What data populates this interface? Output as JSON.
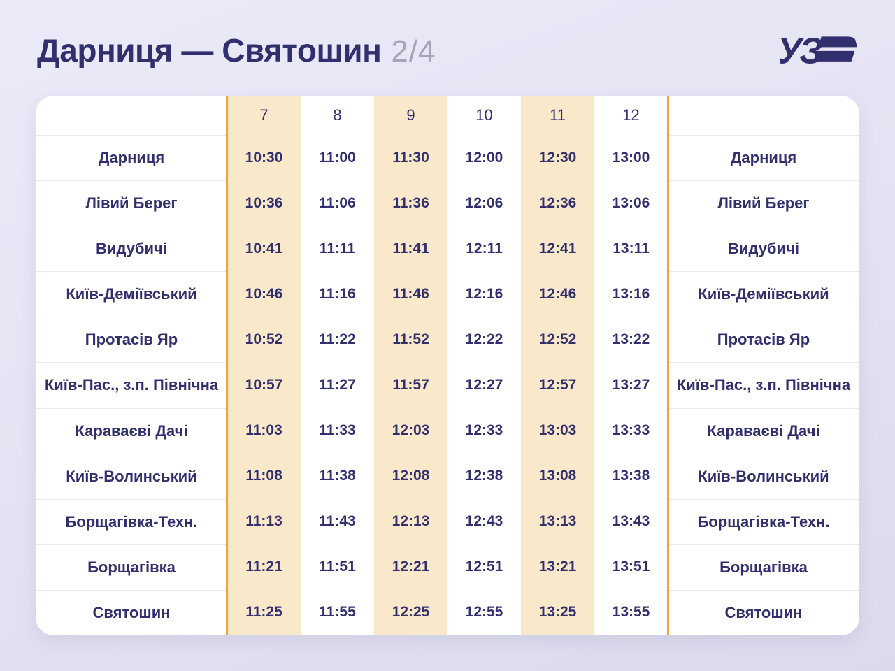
{
  "header": {
    "title": "Дарниця — Святошин",
    "page_indicator": "2/4",
    "logo_text": "УЗ"
  },
  "chart_data": {
    "type": "table",
    "title": "Дарниця — Святошин",
    "page": "2/4",
    "train_numbers": [
      "7",
      "8",
      "9",
      "10",
      "11",
      "12"
    ],
    "highlighted_train_numbers": [
      "7",
      "9",
      "11"
    ],
    "station_column_repeated_right": true,
    "rows": [
      {
        "station": "Дарниця",
        "times": [
          "10:30",
          "11:00",
          "11:30",
          "12:00",
          "12:30",
          "13:00"
        ]
      },
      {
        "station": "Лівий Берег",
        "times": [
          "10:36",
          "11:06",
          "11:36",
          "12:06",
          "12:36",
          "13:06"
        ]
      },
      {
        "station": "Видубичі",
        "times": [
          "10:41",
          "11:11",
          "11:41",
          "12:11",
          "12:41",
          "13:11"
        ]
      },
      {
        "station": "Київ-Деміївський",
        "times": [
          "10:46",
          "11:16",
          "11:46",
          "12:16",
          "12:46",
          "13:16"
        ]
      },
      {
        "station": "Протасів Яр",
        "times": [
          "10:52",
          "11:22",
          "11:52",
          "12:22",
          "12:52",
          "13:22"
        ]
      },
      {
        "station": "Київ-Пас., з.п. Північна",
        "times": [
          "10:57",
          "11:27",
          "11:57",
          "12:27",
          "12:57",
          "13:27"
        ]
      },
      {
        "station": "Караваєві Дачі",
        "times": [
          "11:03",
          "11:33",
          "12:03",
          "12:33",
          "13:03",
          "13:33"
        ]
      },
      {
        "station": "Київ-Волинський",
        "times": [
          "11:08",
          "11:38",
          "12:08",
          "12:38",
          "13:08",
          "13:38"
        ]
      },
      {
        "station": "Борщагівка-Техн.",
        "times": [
          "11:13",
          "11:43",
          "12:13",
          "12:43",
          "13:13",
          "13:43"
        ]
      },
      {
        "station": "Борщагівка",
        "times": [
          "11:21",
          "11:51",
          "12:21",
          "12:51",
          "13:21",
          "13:51"
        ]
      },
      {
        "station": "Святошин",
        "times": [
          "11:25",
          "11:55",
          "12:25",
          "12:55",
          "13:25",
          "13:55"
        ]
      }
    ]
  },
  "colors": {
    "navy": "#312F6E",
    "muted_gray": "#A5A4B8",
    "accent_orange": "#F0A43E",
    "highlight_peach": "#FAE8CB",
    "separator": "#E9E9F0",
    "card_white": "#FFFFFF"
  }
}
